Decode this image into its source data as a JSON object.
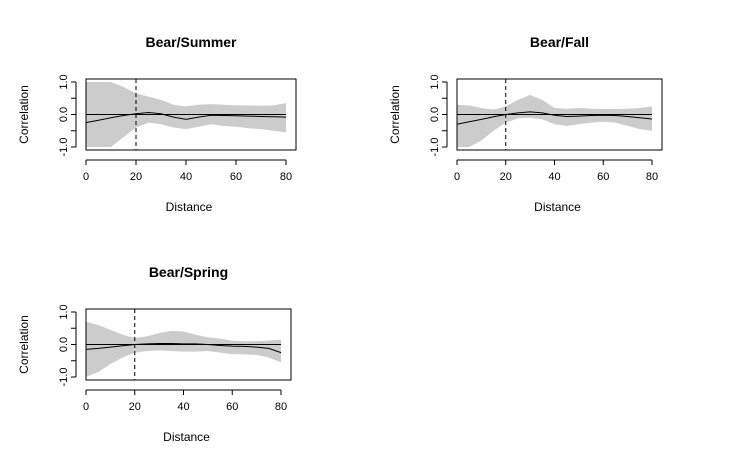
{
  "chart_data": [
    {
      "type": "line",
      "title": "Bear/Summer",
      "xlabel": "Distance",
      "ylabel": "Correlation",
      "xlim": [
        0,
        80
      ],
      "ylim": [
        -1,
        1
      ],
      "xticks": [
        "0",
        "20",
        "40",
        "60",
        "80"
      ],
      "yticks": [
        "-1.0",
        "0.0",
        "1.0"
      ],
      "yticks_half": [
        "-0.5",
        "0.5"
      ],
      "ytick_labels": [
        "-1.0",
        "0.0",
        "1.0"
      ],
      "reference_x": 20,
      "x": [
        0,
        5,
        10,
        15,
        20,
        25,
        30,
        35,
        40,
        45,
        50,
        55,
        60,
        65,
        70,
        75,
        80
      ],
      "estimate": [
        -0.25,
        -0.18,
        -0.1,
        -0.03,
        0.02,
        0.06,
        0.02,
        -0.08,
        -0.15,
        -0.08,
        -0.02,
        -0.03,
        -0.04,
        -0.05,
        -0.06,
        -0.07,
        -0.08
      ],
      "upper": [
        1.0,
        1.0,
        1.0,
        0.85,
        0.65,
        0.55,
        0.45,
        0.3,
        0.25,
        0.3,
        0.32,
        0.3,
        0.28,
        0.28,
        0.27,
        0.28,
        0.35
      ],
      "lower": [
        -1.0,
        -1.0,
        -1.0,
        -0.7,
        -0.4,
        -0.25,
        -0.3,
        -0.4,
        -0.45,
        -0.38,
        -0.3,
        -0.35,
        -0.38,
        -0.42,
        -0.45,
        -0.5,
        -0.55
      ],
      "null_line": 0
    },
    {
      "type": "line",
      "title": "Bear/Fall",
      "xlabel": "Distance",
      "ylabel": "Correlation",
      "xlim": [
        0,
        80
      ],
      "ylim": [
        -1,
        1
      ],
      "xticks": [
        "0",
        "20",
        "40",
        "60",
        "80"
      ],
      "yticks_half": [
        "-0.5",
        "0.5"
      ],
      "ytick_labels": [
        "-1.0",
        "0.0",
        "1.0"
      ],
      "reference_x": 20,
      "x": [
        0,
        5,
        10,
        15,
        20,
        25,
        30,
        35,
        40,
        45,
        50,
        55,
        60,
        65,
        70,
        75,
        80
      ],
      "estimate": [
        -0.3,
        -0.22,
        -0.15,
        -0.07,
        0.0,
        0.05,
        0.08,
        0.05,
        -0.02,
        -0.06,
        -0.05,
        -0.03,
        -0.02,
        -0.03,
        -0.06,
        -0.1,
        -0.14
      ],
      "upper": [
        0.3,
        0.28,
        0.2,
        0.15,
        0.25,
        0.45,
        0.6,
        0.45,
        0.2,
        0.18,
        0.2,
        0.18,
        0.17,
        0.17,
        0.18,
        0.2,
        0.25
      ],
      "lower": [
        -1.0,
        -1.0,
        -0.8,
        -0.5,
        -0.25,
        -0.12,
        -0.1,
        -0.15,
        -0.3,
        -0.35,
        -0.3,
        -0.25,
        -0.22,
        -0.25,
        -0.35,
        -0.45,
        -0.5
      ],
      "null_line": 0
    },
    {
      "type": "line",
      "title": "Bear/Spring",
      "xlabel": "Distance",
      "ylabel": "Correlation",
      "xlim": [
        0,
        80
      ],
      "ylim": [
        -1,
        1
      ],
      "xticks": [
        "0",
        "20",
        "40",
        "60",
        "80"
      ],
      "yticks_half": [
        "-0.5",
        "0.5"
      ],
      "ytick_labels": [
        "-1.0",
        "0.0",
        "1.0"
      ],
      "reference_x": 20,
      "x": [
        0,
        5,
        10,
        15,
        20,
        25,
        30,
        35,
        40,
        45,
        50,
        55,
        60,
        65,
        70,
        75,
        80
      ],
      "estimate": [
        -0.15,
        -0.12,
        -0.08,
        -0.04,
        0.0,
        0.02,
        0.03,
        0.03,
        0.02,
        0.02,
        0.0,
        -0.03,
        -0.05,
        -0.06,
        -0.08,
        -0.12,
        -0.25
      ],
      "upper": [
        0.7,
        0.6,
        0.45,
        0.3,
        0.2,
        0.25,
        0.35,
        0.42,
        0.4,
        0.3,
        0.22,
        0.18,
        0.12,
        0.1,
        0.1,
        0.12,
        0.15
      ],
      "lower": [
        -1.0,
        -0.85,
        -0.6,
        -0.4,
        -0.25,
        -0.2,
        -0.18,
        -0.2,
        -0.22,
        -0.22,
        -0.2,
        -0.25,
        -0.3,
        -0.3,
        -0.32,
        -0.4,
        -0.55
      ],
      "null_line": 0
    }
  ],
  "colors": {
    "band": "#cccccc",
    "line": "#000000"
  }
}
